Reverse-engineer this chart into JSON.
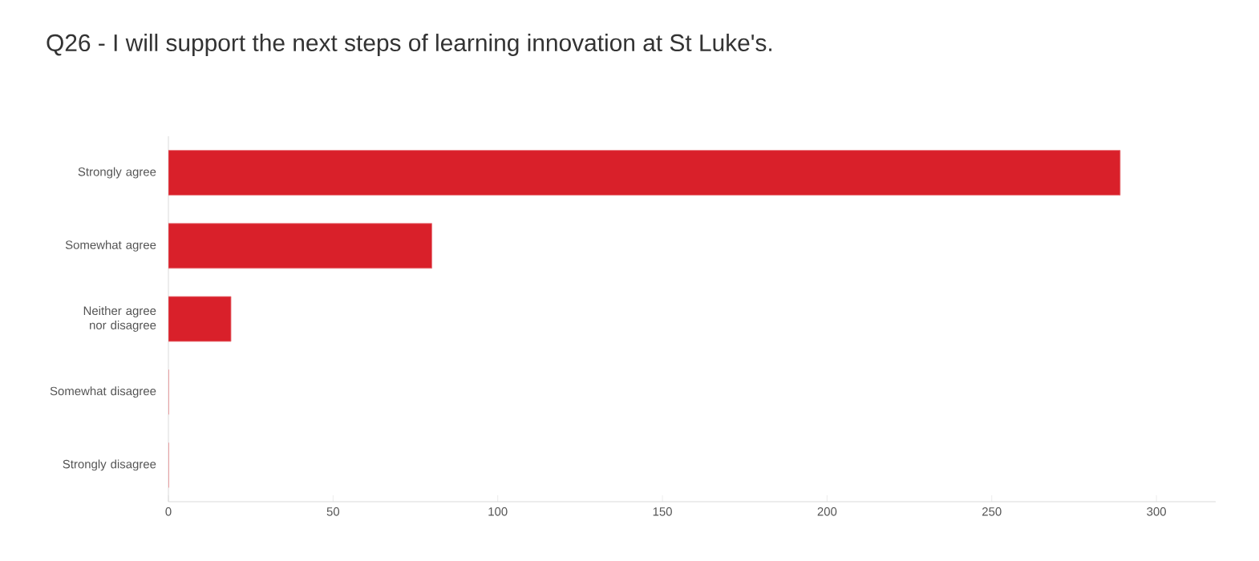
{
  "chart_data": {
    "type": "bar",
    "orientation": "horizontal",
    "title": "Q26 - I will support the next steps of learning innovation at St Luke's.",
    "categories": [
      "Strongly agree",
      "Somewhat agree",
      "Neither agree nor disagree",
      "Somewhat disagree",
      "Strongly disagree"
    ],
    "values": [
      289,
      80,
      19,
      0,
      0
    ],
    "color": "#d9202a",
    "xlim": [
      0,
      318
    ],
    "xticks": [
      0,
      50,
      100,
      150,
      200,
      250,
      300
    ],
    "grid": false
  }
}
